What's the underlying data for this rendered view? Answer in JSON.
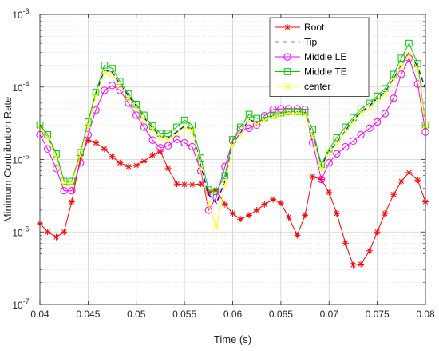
{
  "chart_data": {
    "type": "line",
    "title": "",
    "xlabel": "Time (s)",
    "ylabel": "Minimum Contribution Rate",
    "xlim": [
      0.04,
      0.08
    ],
    "ylim": [
      1e-07,
      0.001
    ],
    "yscale": "log",
    "grid": true,
    "minor_grid": true,
    "legend_position": "top-right",
    "x_ticks": [
      0.04,
      0.045,
      0.05,
      0.055,
      0.06,
      0.065,
      0.07,
      0.075,
      0.08
    ],
    "x_tick_labels": [
      "0.04",
      "0.045",
      "0.05",
      "0.055",
      "0.06",
      "0.065",
      "0.07",
      "0.075",
      "0.08"
    ],
    "y_tick_labels": [
      {
        "base": "10",
        "exp": "-7"
      },
      {
        "base": "10",
        "exp": "-6"
      },
      {
        "base": "10",
        "exp": "-5"
      },
      {
        "base": "10",
        "exp": "-4"
      },
      {
        "base": "10",
        "exp": "-3"
      }
    ],
    "x": [
      0.04,
      0.0408,
      0.0417,
      0.0425,
      0.0433,
      0.0442,
      0.045,
      0.0458,
      0.0467,
      0.0475,
      0.0483,
      0.0492,
      0.05,
      0.0508,
      0.0517,
      0.0525,
      0.0533,
      0.0542,
      0.055,
      0.0558,
      0.0567,
      0.0575,
      0.0583,
      0.0592,
      0.06,
      0.0608,
      0.0617,
      0.0625,
      0.0633,
      0.0642,
      0.065,
      0.0658,
      0.0667,
      0.0675,
      0.0683,
      0.0692,
      0.07,
      0.0708,
      0.0717,
      0.0725,
      0.0733,
      0.0742,
      0.075,
      0.0758,
      0.0767,
      0.0775,
      0.0783,
      0.0792,
      0.08
    ],
    "series": [
      {
        "name": "Root",
        "color": "#ff0000",
        "marker": "asterisk",
        "dash": "solid",
        "values": [
          1.3e-06,
          1e-06,
          8.5e-07,
          1e-06,
          2.6e-06,
          1.05e-05,
          1.85e-05,
          1.7e-05,
          1.4e-05,
          1.1e-05,
          9e-06,
          8e-06,
          8.3e-06,
          9.5e-06,
          1.15e-05,
          1.3e-05,
          7.5e-06,
          4.6e-06,
          4.5e-06,
          4.5e-06,
          4.6e-06,
          3.5e-06,
          3.8e-06,
          2.4e-06,
          1.8e-06,
          1.5e-06,
          1.7e-06,
          2e-06,
          2.4e-06,
          2.8e-06,
          2.5e-06,
          1.6e-06,
          9e-07,
          1.7e-06,
          5.8e-06,
          5.3e-06,
          3.5e-06,
          1.8e-06,
          7e-07,
          3.5e-07,
          3.6e-07,
          5.5e-07,
          1e-06,
          1.8e-06,
          3.3e-06,
          5e-06,
          6.6e-06,
          5.2e-06,
          2.6e-06
        ]
      },
      {
        "name": "Tip",
        "color": "#0000ff",
        "marker": "none",
        "dash": "dashed",
        "values": [
          2.9e-05,
          2e-05,
          1.2e-05,
          5e-06,
          5e-06,
          1.2e-05,
          3.2e-05,
          8e-05,
          0.00017,
          0.00016,
          0.00011,
          7.5e-05,
          5.5e-05,
          3.8e-05,
          2.7e-05,
          2.1e-05,
          2e-05,
          2.4e-05,
          2.9e-05,
          2.6e-05,
          8e-06,
          3.3e-06,
          2.5e-06,
          5e-06,
          1.65e-05,
          2.3e-05,
          3.6e-05,
          3.2e-05,
          3.6e-05,
          4e-05,
          4.3e-05,
          4.5e-05,
          4.5e-05,
          4.3e-05,
          2.2e-05,
          8e-06,
          1.3e-05,
          1.7e-05,
          2.5e-05,
          3.5e-05,
          4.5e-05,
          5.5e-05,
          7e-05,
          8.5e-05,
          0.00013,
          0.0002,
          0.0003,
          0.00019,
          9.5e-05
        ]
      },
      {
        "name": "Middle LE",
        "color": "#ff00ff",
        "marker": "circle",
        "dash": "solid",
        "values": [
          2.2e-05,
          1.4e-05,
          7.5e-06,
          3.7e-06,
          3.7e-06,
          9e-06,
          2.2e-05,
          4.8e-05,
          9e-05,
          0.000105,
          9e-05,
          6e-05,
          4.1e-05,
          2.8e-05,
          1.85e-05,
          1.45e-05,
          1.55e-05,
          1.9e-05,
          1.7e-05,
          1.5e-05,
          7e-06,
          2e-06,
          3e-06,
          8e-06,
          1.8e-05,
          2.6e-05,
          2.7e-05,
          3e-05,
          4e-05,
          4.9e-05,
          5e-05,
          5e-05,
          5e-05,
          4.9e-05,
          1.7e-05,
          5.3e-06,
          9e-06,
          1.2e-05,
          1.5e-05,
          1.8e-05,
          2.2e-05,
          2.7e-05,
          3.3e-05,
          4.3e-05,
          7e-05,
          0.00015,
          0.00025,
          0.00011,
          2.4e-05
        ]
      },
      {
        "name": "Middle TE",
        "color": "#00cc00",
        "marker": "square",
        "dash": "solid",
        "values": [
          3e-05,
          2.2e-05,
          1.2e-05,
          5e-06,
          5e-06,
          1.25e-05,
          3.3e-05,
          8.5e-05,
          0.0002,
          0.00018,
          0.00012,
          8e-05,
          5.8e-05,
          4.1e-05,
          2.9e-05,
          2.3e-05,
          2.3e-05,
          2.8e-05,
          3.5e-05,
          3e-05,
          1.05e-05,
          3.8e-06,
          3.6e-06,
          6e-06,
          1.9e-05,
          2.8e-05,
          4.2e-05,
          3.7e-05,
          3.8e-05,
          4.1e-05,
          4.4e-05,
          4.6e-05,
          4.6e-05,
          4.5e-05,
          2.6e-05,
          8.5e-06,
          1.4e-05,
          2e-05,
          2.8e-05,
          3.8e-05,
          5e-05,
          6e-05,
          7.5e-05,
          9.5e-05,
          0.00015,
          0.00025,
          0.0004,
          0.00021,
          3e-05
        ]
      },
      {
        "name": "center",
        "color": "#ffff00",
        "marker": "x",
        "dash": "solid",
        "values": [
          2.8e-05,
          2e-05,
          1.1e-05,
          4.7e-06,
          4.7e-06,
          1.15e-05,
          3e-05,
          7.5e-05,
          0.00016,
          0.00015,
          0.000105,
          7e-05,
          5.2e-05,
          3.6e-05,
          2.6e-05,
          2e-05,
          1.9e-05,
          2.3e-05,
          2.8e-05,
          2.5e-05,
          7.5e-06,
          2.5e-06,
          1.15e-06,
          4.5e-06,
          1.6e-05,
          2.2e-05,
          3.4e-05,
          3.1e-05,
          3.5e-05,
          3.9e-05,
          4.2e-05,
          4.4e-05,
          4.4e-05,
          4.2e-05,
          2.1e-05,
          7.5e-06,
          1.25e-05,
          1.65e-05,
          2.4e-05,
          3.3e-05,
          4.3e-05,
          5.2e-05,
          6.5e-05,
          8e-05,
          0.000125,
          0.00019,
          0.00028,
          0.00018,
          2.9e-05
        ]
      }
    ]
  }
}
